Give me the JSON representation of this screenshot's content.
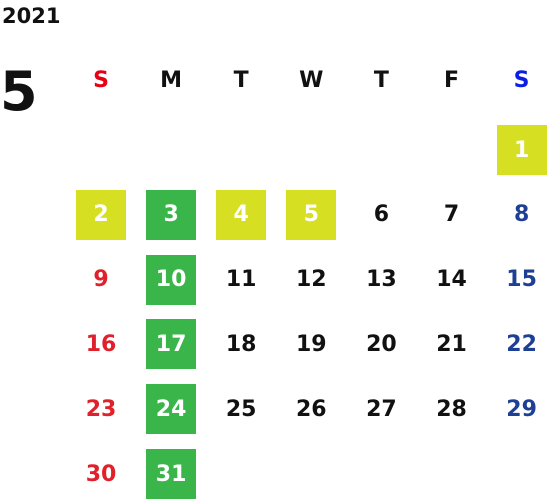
{
  "year": "2021",
  "month": "5",
  "weekdays": [
    "S",
    "M",
    "T",
    "W",
    "T",
    "F",
    "S"
  ],
  "weeks": [
    [
      {
        "day": null
      },
      {
        "day": null
      },
      {
        "day": null
      },
      {
        "day": null
      },
      {
        "day": null
      },
      {
        "day": null
      },
      {
        "day": 1,
        "fill": "#d7df23"
      }
    ],
    [
      {
        "day": 2,
        "fill": "#d7df23"
      },
      {
        "day": 3,
        "fill": "#39b54a"
      },
      {
        "day": 4,
        "fill": "#d7df23"
      },
      {
        "day": 5,
        "fill": "#d7df23"
      },
      {
        "day": 6
      },
      {
        "day": 7
      },
      {
        "day": 8
      }
    ],
    [
      {
        "day": 9
      },
      {
        "day": 10,
        "fill": "#39b54a"
      },
      {
        "day": 11
      },
      {
        "day": 12
      },
      {
        "day": 13
      },
      {
        "day": 14
      },
      {
        "day": 15
      }
    ],
    [
      {
        "day": 16
      },
      {
        "day": 17,
        "fill": "#39b54a"
      },
      {
        "day": 18
      },
      {
        "day": 19
      },
      {
        "day": 20
      },
      {
        "day": 21
      },
      {
        "day": 22
      }
    ],
    [
      {
        "day": 23
      },
      {
        "day": 24,
        "fill": "#39b54a"
      },
      {
        "day": 25
      },
      {
        "day": 26
      },
      {
        "day": 27
      },
      {
        "day": 28
      },
      {
        "day": 29
      }
    ],
    [
      {
        "day": 30
      },
      {
        "day": 31,
        "fill": "#39b54a"
      },
      {
        "day": null
      },
      {
        "day": null
      },
      {
        "day": null
      },
      {
        "day": null
      },
      {
        "day": null
      }
    ]
  ]
}
